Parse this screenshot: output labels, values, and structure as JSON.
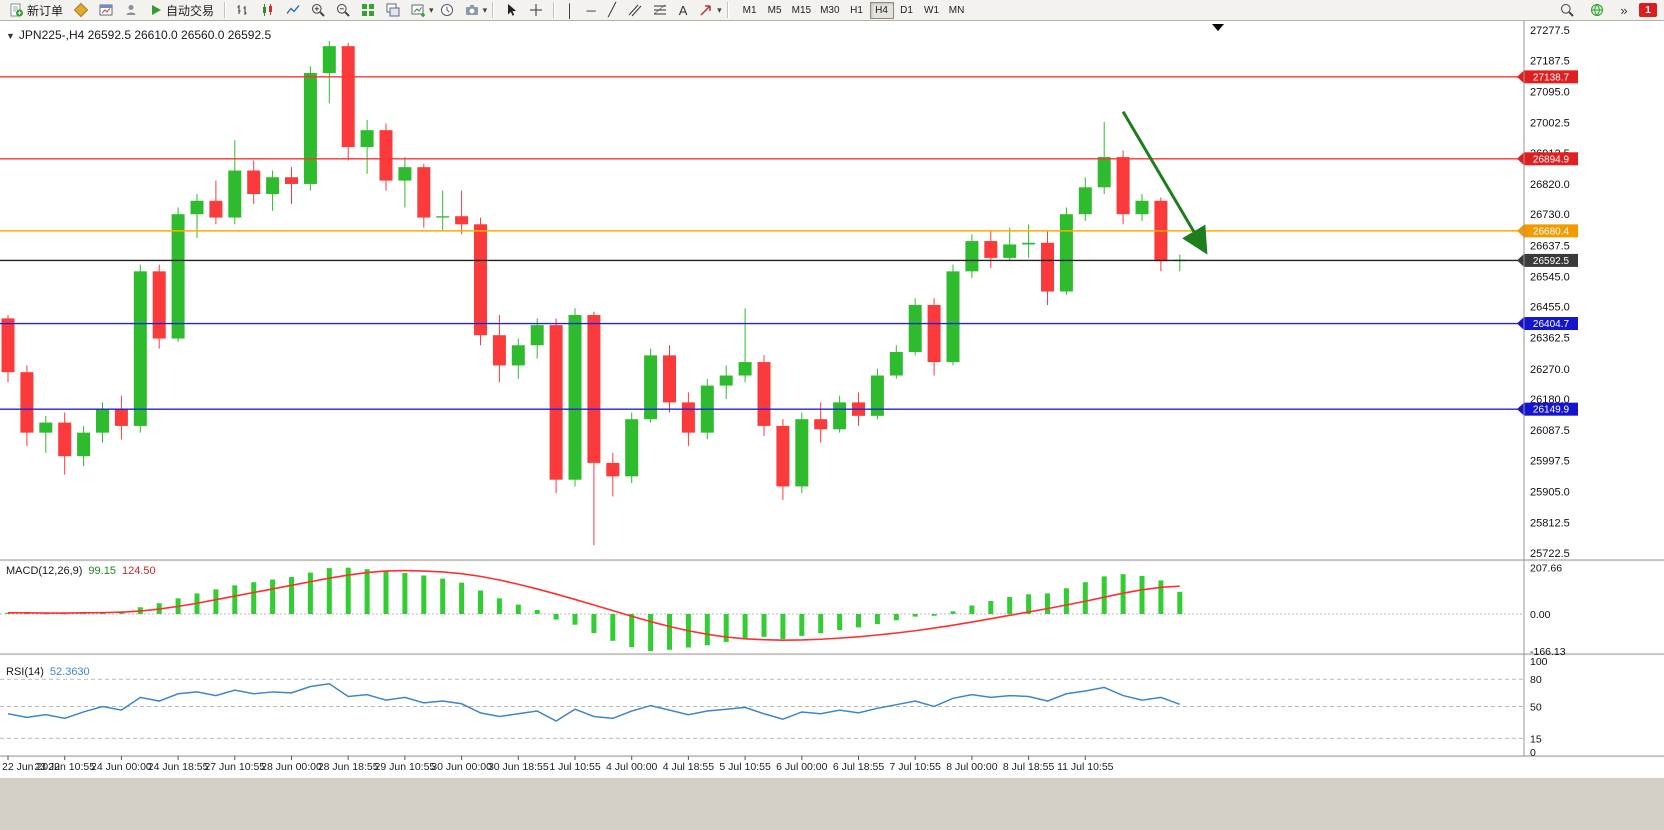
{
  "toolbar": {
    "new_order_label": "新订单",
    "auto_trading_label": "自动交易",
    "timeframes": [
      "M1",
      "M5",
      "M15",
      "M30",
      "H1",
      "H4",
      "D1",
      "W1",
      "MN"
    ],
    "active_timeframe": "H4",
    "alert_badge": "1"
  },
  "chart": {
    "header": "JPN225-,H4  26592.5 26610.0 26560.0 26592.5"
  },
  "indicators": {
    "macd": {
      "name": "MACD(12,26,9)",
      "value_main": "99.15",
      "value_signal": "124.50"
    },
    "rsi": {
      "name": "RSI(14)",
      "value": "52.3630"
    }
  },
  "chart_data": [
    {
      "type": "candlestick",
      "title": "JPN225-,H4",
      "ylim": [
        25710,
        27290
      ],
      "grid": false,
      "colors": {
        "bull": "#2ebb2e",
        "bear": "#fb3b3b"
      },
      "y_ticks": [
        "27277.5",
        "27187.5",
        "27095.0",
        "27002.5",
        "26912.5",
        "26820.0",
        "26730.0",
        "26637.5",
        "26545.0",
        "26455.0",
        "26362.5",
        "26270.0",
        "26180.0",
        "26087.5",
        "25997.5",
        "25905.0",
        "25812.5",
        "25722.5"
      ],
      "x_labels": [
        "22 Jun 2022",
        "23 Jun 10:55",
        "24 Jun 00:00",
        "24 Jun 18:55",
        "27 Jun 10:55",
        "28 Jun 00:00",
        "28 Jun 18:55",
        "29 Jun 10:55",
        "30 Jun 00:00",
        "30 Jun 18:55",
        "1 Jul 10:55",
        "4 Jul 00:00",
        "4 Jul 18:55",
        "5 Jul 10:55",
        "6 Jul 00:00",
        "6 Jul 18:55",
        "7 Jul 10:55",
        "8 Jul 00:00",
        "8 Jul 18:55",
        "11 Jul 10:55"
      ],
      "candles_per_label": 3,
      "hlines": [
        {
          "price": 27138.7,
          "label": "27138.7",
          "color": "#ff3333",
          "tag": "#e02020"
        },
        {
          "price": 26894.9,
          "label": "26894.9",
          "color": "#ff3333",
          "tag": "#e02020"
        },
        {
          "price": 26680.4,
          "label": "26680.4",
          "color": "#ffaa00",
          "tag": "#f29b00"
        },
        {
          "price": 26592.5,
          "label": "26592.5",
          "color": "#222222",
          "tag": "#3a3a3a"
        },
        {
          "price": 26404.7,
          "label": "26404.7",
          "color": "#2222dd",
          "tag": "#1515cc"
        },
        {
          "price": 26149.9,
          "label": "26149.9",
          "color": "#2222dd",
          "tag": "#1515cc"
        }
      ],
      "annotations": [
        {
          "type": "arrow",
          "from_candle": 59,
          "from_price": 27035,
          "to_candle": 63.3,
          "to_price": 26625,
          "color": "#1e7d1e"
        }
      ],
      "ohlc": [
        [
          26420,
          26430,
          26230,
          26260
        ],
        [
          26260,
          26280,
          26040,
          26080
        ],
        [
          26080,
          26130,
          26020,
          26110
        ],
        [
          26110,
          26140,
          25955,
          26010
        ],
        [
          26010,
          26100,
          25980,
          26080
        ],
        [
          26080,
          26170,
          26050,
          26150
        ],
        [
          26150,
          26190,
          26060,
          26100
        ],
        [
          26100,
          26580,
          26080,
          26560
        ],
        [
          26560,
          26580,
          26330,
          26360
        ],
        [
          26360,
          26750,
          26350,
          26730
        ],
        [
          26730,
          26790,
          26660,
          26770
        ],
        [
          26770,
          26830,
          26700,
          26720
        ],
        [
          26720,
          26950,
          26700,
          26860
        ],
        [
          26860,
          26890,
          26760,
          26790
        ],
        [
          26790,
          26860,
          26740,
          26840
        ],
        [
          26840,
          26870,
          26760,
          26820
        ],
        [
          26820,
          27170,
          26800,
          27150
        ],
        [
          27150,
          27245,
          27060,
          27230
        ],
        [
          27230,
          27240,
          26890,
          26930
        ],
        [
          26930,
          27010,
          26850,
          26980
        ],
        [
          26980,
          27000,
          26800,
          26830
        ],
        [
          26830,
          26900,
          26750,
          26870
        ],
        [
          26870,
          26880,
          26690,
          26720
        ],
        [
          26720,
          26800,
          26680,
          26724
        ],
        [
          26724,
          26800,
          26670,
          26700
        ],
        [
          26700,
          26720,
          26340,
          26370
        ],
        [
          26370,
          26430,
          26230,
          26280
        ],
        [
          26280,
          26360,
          26240,
          26340
        ],
        [
          26340,
          26420,
          26300,
          26400
        ],
        [
          26400,
          26420,
          25900,
          25940
        ],
        [
          25940,
          26450,
          25920,
          26430
        ],
        [
          26430,
          26440,
          25745,
          25990
        ],
        [
          25990,
          26020,
          25890,
          25950
        ],
        [
          25950,
          26140,
          25930,
          26120
        ],
        [
          26120,
          26330,
          26110,
          26310
        ],
        [
          26310,
          26340,
          26140,
          26170
        ],
        [
          26170,
          26200,
          26040,
          26080
        ],
        [
          26080,
          26240,
          26060,
          26220
        ],
        [
          26220,
          26280,
          26180,
          26250
        ],
        [
          26250,
          26450,
          26230,
          26290
        ],
        [
          26290,
          26310,
          26070,
          26100
        ],
        [
          26100,
          26120,
          25880,
          25920
        ],
        [
          25920,
          26140,
          25900,
          26120
        ],
        [
          26120,
          26170,
          26050,
          26090
        ],
        [
          26090,
          26190,
          26080,
          26170
        ],
        [
          26170,
          26200,
          26100,
          26130
        ],
        [
          26130,
          26270,
          26120,
          26250
        ],
        [
          26250,
          26340,
          26240,
          26320
        ],
        [
          26320,
          26480,
          26310,
          26460
        ],
        [
          26460,
          26480,
          26250,
          26290
        ],
        [
          26290,
          26580,
          26280,
          26560
        ],
        [
          26560,
          26670,
          26540,
          26650
        ],
        [
          26650,
          26680,
          26570,
          26600
        ],
        [
          26600,
          26690,
          26590,
          26640
        ],
        [
          26640,
          26700,
          26600,
          26645
        ],
        [
          26645,
          26680,
          26460,
          26500
        ],
        [
          26500,
          26750,
          26490,
          26730
        ],
        [
          26730,
          26840,
          26710,
          26810
        ],
        [
          26810,
          27005,
          26790,
          26900
        ],
        [
          26900,
          26920,
          26700,
          26730
        ],
        [
          26730,
          26790,
          26710,
          26770
        ],
        [
          26770,
          26780,
          26560,
          26590
        ],
        [
          26592.5,
          26610.0,
          26560.0,
          26592.5
        ]
      ]
    },
    {
      "type": "bar",
      "title": "MACD(12,26,9)",
      "ylim": [
        -170,
        210
      ],
      "y_ticks": [
        "207.66",
        "0.00",
        "-166.13"
      ],
      "colors": {
        "histogram": "#32cd32",
        "signal": "#ff2f2f"
      },
      "histogram": [
        6,
        4,
        3,
        3,
        5,
        8,
        12,
        30,
        48,
        70,
        92,
        110,
        128,
        142,
        154,
        165,
        185,
        205,
        207,
        200,
        192,
        183,
        172,
        158,
        140,
        105,
        70,
        42,
        18,
        -25,
        -48,
        -85,
        -120,
        -148,
        -166,
        -160,
        -150,
        -140,
        -125,
        -110,
        -102,
        -112,
        -98,
        -86,
        -72,
        -60,
        -45,
        -28,
        -12,
        -8,
        12,
        38,
        58,
        76,
        88,
        92,
        115,
        142,
        168,
        178,
        170,
        150,
        99
      ],
      "signal": [
        5,
        5,
        4,
        4,
        5,
        6,
        8,
        13,
        22,
        34,
        48,
        64,
        80,
        96,
        112,
        128,
        144,
        160,
        174,
        185,
        192,
        194,
        192,
        188,
        180,
        168,
        152,
        133,
        112,
        89,
        65,
        40,
        15,
        -10,
        -34,
        -56,
        -75,
        -91,
        -103,
        -111,
        -115,
        -117,
        -116,
        -113,
        -108,
        -102,
        -94,
        -85,
        -75,
        -63,
        -50,
        -36,
        -21,
        -6,
        9,
        24,
        40,
        57,
        75,
        93,
        108,
        119,
        124.5
      ]
    },
    {
      "type": "line",
      "title": "RSI(14)",
      "ylim": [
        0,
        100
      ],
      "y_ticks": [
        "100",
        "80",
        "50",
        "15",
        "0"
      ],
      "levels": [
        80,
        50,
        15
      ],
      "color": "#3e86c8",
      "values": [
        42,
        38,
        41,
        37,
        44,
        50,
        46,
        60,
        56,
        64,
        66,
        62,
        68,
        64,
        66,
        65,
        72,
        75,
        61,
        63,
        57,
        60,
        54,
        56,
        53,
        43,
        39,
        42,
        45,
        34,
        47,
        39,
        37,
        45,
        51,
        46,
        41,
        45,
        47,
        49,
        42,
        36,
        44,
        42,
        46,
        43,
        48,
        52,
        56,
        50,
        59,
        63,
        60,
        62,
        61,
        56,
        64,
        67,
        71,
        62,
        57,
        60,
        52.36
      ]
    }
  ]
}
